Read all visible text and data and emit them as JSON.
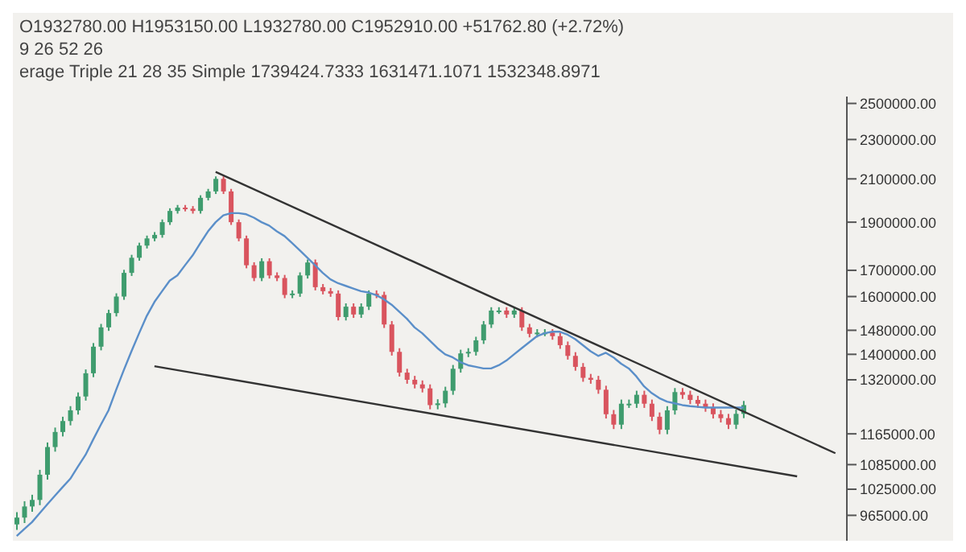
{
  "chart_data": {
    "type": "candlestick",
    "annotations": [
      "O1932780.00 H1953150.00 L1932780.00 C1952910.00 +51762.80 (+2.72%)",
      "9 26 52 26",
      "erage Triple 21 28 35 Simple 1739424.7333 1631471.1071 1532348.8971"
    ],
    "categories": [
      null,
      null,
      null,
      null,
      null,
      null,
      null,
      null,
      null,
      null,
      null,
      null,
      null,
      null,
      null,
      null,
      null,
      null,
      null,
      null,
      null,
      null,
      null,
      null,
      null,
      null,
      null,
      null,
      null,
      null,
      null,
      null,
      null,
      null,
      null,
      null,
      null,
      null,
      null,
      null,
      null,
      null,
      null,
      null,
      null,
      null,
      null,
      null,
      null,
      null,
      null,
      null,
      null,
      null,
      null,
      null,
      null,
      null,
      null,
      null,
      null,
      null,
      null,
      null,
      null,
      null,
      null,
      null,
      null,
      null,
      null,
      null,
      null,
      null,
      null,
      null,
      null,
      null,
      null,
      null,
      null,
      null,
      null,
      null,
      null,
      null,
      null,
      null,
      null,
      null,
      null,
      null,
      null,
      null,
      null,
      null,
      null,
      null,
      null,
      null,
      null,
      null,
      null,
      null,
      null,
      null,
      null,
      null,
      null
    ],
    "ohlc": [
      [
        945000,
        972000,
        933000,
        960000
      ],
      [
        960000,
        997000,
        948000,
        985000
      ],
      [
        985000,
        1012000,
        973000,
        1000000
      ],
      [
        1000000,
        1072000,
        988000,
        1060000
      ],
      [
        1060000,
        1142000,
        1048000,
        1130000
      ],
      [
        1130000,
        1182000,
        1118000,
        1170000
      ],
      [
        1170000,
        1212000,
        1158000,
        1200000
      ],
      [
        1200000,
        1242000,
        1188000,
        1230000
      ],
      [
        1230000,
        1282000,
        1218000,
        1270000
      ],
      [
        1270000,
        1352000,
        1258000,
        1340000
      ],
      [
        1340000,
        1437000,
        1328000,
        1425000
      ],
      [
        1425000,
        1502000,
        1413000,
        1490000
      ],
      [
        1490000,
        1552000,
        1478000,
        1540000
      ],
      [
        1540000,
        1612000,
        1528000,
        1600000
      ],
      [
        1600000,
        1702000,
        1588000,
        1690000
      ],
      [
        1690000,
        1762000,
        1678000,
        1750000
      ],
      [
        1750000,
        1812000,
        1738000,
        1800000
      ],
      [
        1800000,
        1842000,
        1788000,
        1830000
      ],
      [
        1830000,
        1857000,
        1818000,
        1845000
      ],
      [
        1845000,
        1912000,
        1833000,
        1900000
      ],
      [
        1900000,
        1962000,
        1888000,
        1950000
      ],
      [
        1950000,
        1977000,
        1938000,
        1965000
      ],
      [
        1965000,
        1977000,
        1948000,
        1960000
      ],
      [
        1960000,
        1972000,
        1938000,
        1950000
      ],
      [
        1950000,
        2022000,
        1938000,
        2010000
      ],
      [
        2010000,
        2052000,
        1998000,
        2040000
      ],
      [
        2040000,
        2112000,
        2028000,
        2100000
      ],
      [
        2100000,
        2112000,
        2028000,
        2040000
      ],
      [
        2040000,
        2052000,
        1888000,
        1900000
      ],
      [
        1900000,
        1912000,
        1818000,
        1830000
      ],
      [
        1830000,
        1842000,
        1708000,
        1720000
      ],
      [
        1720000,
        1732000,
        1658000,
        1670000
      ],
      [
        1670000,
        1748000,
        1658000,
        1736000
      ],
      [
        1736000,
        1748000,
        1668000,
        1680000
      ],
      [
        1680000,
        1692000,
        1658000,
        1670000
      ],
      [
        1670000,
        1682000,
        1594000,
        1606000
      ],
      [
        1606000,
        1623000,
        1594000,
        1611000
      ],
      [
        1611000,
        1692000,
        1599000,
        1680000
      ],
      [
        1680000,
        1743000,
        1668000,
        1731000
      ],
      [
        1731000,
        1743000,
        1623000,
        1635000
      ],
      [
        1635000,
        1647000,
        1608000,
        1620000
      ],
      [
        1620000,
        1632000,
        1599000,
        1611000
      ],
      [
        1611000,
        1623000,
        1514000,
        1526000
      ],
      [
        1526000,
        1575000,
        1514000,
        1563000
      ],
      [
        1563000,
        1575000,
        1523000,
        1535000
      ],
      [
        1535000,
        1575000,
        1523000,
        1563000
      ],
      [
        1563000,
        1623000,
        1551000,
        1611000
      ],
      [
        1611000,
        1623000,
        1594000,
        1606000
      ],
      [
        1606000,
        1618000,
        1488000,
        1500000
      ],
      [
        1500000,
        1512000,
        1396000,
        1408000
      ],
      [
        1408000,
        1420000,
        1330000,
        1342000
      ],
      [
        1342000,
        1354000,
        1308000,
        1320000
      ],
      [
        1320000,
        1332000,
        1294000,
        1306000
      ],
      [
        1306000,
        1318000,
        1282000,
        1294000
      ],
      [
        1294000,
        1306000,
        1233000,
        1245000
      ],
      [
        1245000,
        1262000,
        1233000,
        1250000
      ],
      [
        1250000,
        1299000,
        1238000,
        1287000
      ],
      [
        1287000,
        1366000,
        1275000,
        1354000
      ],
      [
        1354000,
        1415000,
        1342000,
        1403000
      ],
      [
        1403000,
        1420000,
        1391000,
        1408000
      ],
      [
        1408000,
        1458000,
        1396000,
        1446000
      ],
      [
        1446000,
        1512000,
        1434000,
        1500000
      ],
      [
        1500000,
        1561000,
        1488000,
        1549000
      ],
      [
        1549000,
        1561000,
        1537000,
        1549000
      ],
      [
        1549000,
        1561000,
        1523000,
        1535000
      ],
      [
        1535000,
        1561000,
        1523000,
        1549000
      ],
      [
        1549000,
        1561000,
        1478000,
        1490000
      ],
      [
        1490000,
        1502000,
        1456000,
        1468000
      ],
      [
        1468000,
        1484000,
        1456000,
        1472000
      ],
      [
        1472000,
        1484000,
        1460000,
        1472000
      ],
      [
        1472000,
        1484000,
        1448000,
        1460000
      ],
      [
        1460000,
        1472000,
        1418000,
        1430000
      ],
      [
        1430000,
        1442000,
        1383000,
        1395000
      ],
      [
        1395000,
        1407000,
        1348000,
        1360000
      ],
      [
        1360000,
        1372000,
        1314000,
        1326000
      ],
      [
        1326000,
        1338000,
        1308000,
        1320000
      ],
      [
        1320000,
        1332000,
        1278000,
        1290000
      ],
      [
        1290000,
        1302000,
        1207000,
        1219000
      ],
      [
        1219000,
        1231000,
        1178000,
        1190000
      ],
      [
        1190000,
        1261000,
        1178000,
        1249000
      ],
      [
        1249000,
        1261000,
        1237000,
        1249000
      ],
      [
        1249000,
        1287000,
        1237000,
        1275000
      ],
      [
        1275000,
        1287000,
        1237000,
        1249000
      ],
      [
        1249000,
        1261000,
        1200000,
        1212000
      ],
      [
        1212000,
        1224000,
        1164000,
        1176000
      ],
      [
        1176000,
        1242000,
        1164000,
        1230000
      ],
      [
        1230000,
        1295000,
        1218000,
        1283000
      ],
      [
        1283000,
        1295000,
        1263000,
        1275000
      ],
      [
        1275000,
        1287000,
        1248000,
        1260000
      ],
      [
        1260000,
        1272000,
        1237000,
        1249000
      ],
      [
        1249000,
        1261000,
        1226000,
        1238000
      ],
      [
        1238000,
        1250000,
        1207000,
        1219000
      ],
      [
        1219000,
        1231000,
        1196000,
        1208000
      ],
      [
        1208000,
        1220000,
        1178000,
        1190000
      ],
      [
        1190000,
        1232000,
        1178000,
        1220000
      ],
      [
        1220000,
        1257000,
        1208000,
        1245000
      ],
      null,
      null,
      null,
      null,
      null,
      null,
      null,
      null,
      null,
      null,
      null,
      null,
      null
    ],
    "series": [
      {
        "type": "line",
        "color": "#5b8fc9",
        "values": [
          920000,
          935000,
          950000,
          970000,
          990000,
          1010000,
          1030000,
          1050000,
          1080000,
          1110000,
          1150000,
          1190000,
          1230000,
          1290000,
          1350000,
          1410000,
          1470000,
          1530000,
          1580000,
          1620000,
          1660000,
          1680000,
          1720000,
          1760000,
          1810000,
          1860000,
          1900000,
          1930000,
          1940000,
          1940000,
          1935000,
          1920000,
          1900000,
          1885000,
          1860000,
          1840000,
          1810000,
          1780000,
          1750000,
          1720000,
          1690000,
          1665000,
          1650000,
          1640000,
          1630000,
          1620000,
          1615000,
          1605000,
          1590000,
          1570000,
          1545000,
          1520000,
          1490000,
          1470000,
          1445000,
          1420000,
          1400000,
          1390000,
          1375000,
          1365000,
          1360000,
          1355000,
          1355000,
          1365000,
          1380000,
          1400000,
          1420000,
          1440000,
          1460000,
          1470000,
          1475000,
          1475000,
          1465000,
          1450000,
          1430000,
          1410000,
          1395000,
          1405000,
          1390000,
          1370000,
          1355000,
          1330000,
          1300000,
          1280000,
          1265000,
          1255000,
          1250000,
          1245000,
          1242000,
          1240000,
          1238000,
          1238000,
          1238000,
          1238000,
          1238000,
          1238000,
          null,
          null,
          null,
          null,
          null,
          null,
          null,
          null,
          null,
          null,
          null,
          null,
          null
        ]
      },
      {
        "type": "line",
        "color": "#333333",
        "values": [
          null,
          null,
          null,
          null,
          null,
          null,
          null,
          null,
          null,
          null,
          null,
          null,
          null,
          null,
          null,
          null,
          null,
          null,
          null,
          null,
          null,
          null,
          null,
          null,
          null,
          null,
          2134000,
          null,
          null,
          null,
          null,
          null,
          null,
          null,
          null,
          null,
          null,
          null,
          null,
          null,
          null,
          null,
          null,
          null,
          null,
          null,
          null,
          null,
          null,
          null,
          null,
          null,
          null,
          null,
          null,
          null,
          null,
          null,
          null,
          null,
          null,
          null,
          null,
          null,
          null,
          null,
          null,
          null,
          null,
          null,
          null,
          null,
          null,
          null,
          null,
          null,
          null,
          null,
          null,
          null,
          null,
          null,
          null,
          null,
          null,
          null,
          null,
          null,
          null,
          null,
          null,
          null,
          null,
          null,
          null,
          null,
          null,
          null,
          null,
          null,
          null,
          null,
          null,
          null,
          null,
          null,
          null,
          1114000,
          null
        ]
      },
      {
        "type": "line",
        "color": "#333333",
        "values": [
          null,
          null,
          null,
          null,
          null,
          null,
          null,
          null,
          null,
          null,
          null,
          null,
          null,
          null,
          null,
          null,
          null,
          null,
          1362000,
          null,
          null,
          null,
          null,
          null,
          null,
          null,
          null,
          null,
          null,
          null,
          null,
          null,
          null,
          null,
          null,
          null,
          null,
          null,
          null,
          null,
          null,
          null,
          null,
          null,
          null,
          null,
          null,
          null,
          null,
          null,
          null,
          null,
          null,
          null,
          null,
          null,
          null,
          null,
          null,
          null,
          null,
          null,
          null,
          null,
          null,
          null,
          null,
          null,
          null,
          null,
          null,
          null,
          null,
          null,
          null,
          null,
          null,
          null,
          null,
          null,
          null,
          null,
          null,
          null,
          null,
          null,
          null,
          null,
          null,
          null,
          null,
          null,
          null,
          null,
          null,
          null,
          null,
          null,
          null,
          null,
          null,
          null,
          1056000,
          null,
          null,
          null,
          null,
          null,
          null
        ]
      }
    ],
    "log": true,
    "ylim": [
      910000,
      2540000
    ],
    "yticks": [
      {
        "value": 965000,
        "label": "965000.00"
      },
      {
        "value": 1025000,
        "label": "1025000.00"
      },
      {
        "value": 1085000,
        "label": "1085000.00"
      },
      {
        "value": 1165000,
        "label": "1165000.00"
      },
      {
        "value": 1320000,
        "label": "1320000.00"
      },
      {
        "value": 1400000,
        "label": "1400000.00"
      },
      {
        "value": 1480000,
        "label": "1480000.00"
      },
      {
        "value": 1600000,
        "label": "1600000.00"
      },
      {
        "value": 1700000,
        "label": "1700000.00"
      },
      {
        "value": 1900000,
        "label": "1900000.00"
      },
      {
        "value": 2100000,
        "label": "2100000.00"
      },
      {
        "value": 2300000,
        "label": "2300000.00"
      },
      {
        "value": 2500000,
        "label": "2500000.00"
      }
    ]
  }
}
